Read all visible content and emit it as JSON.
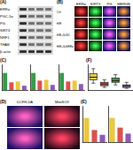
{
  "blot": {
    "label": "(A)",
    "rows": [
      "ERRα",
      "PGC-1α",
      "PG",
      "SIRT3",
      "NRF1",
      "TFAM",
      "β-actin"
    ]
  },
  "staining": {
    "label": "(B)",
    "columns": [
      "ERRα",
      "SIRT3",
      "PG",
      "MERGE"
    ],
    "rows": [
      "Ctrl",
      "H/R",
      "H/R+Si-NC",
      "H/R+Si-ERRα"
    ]
  },
  "imaging": {
    "label": "(D)",
    "columns": [
      "DCFH-DA",
      "MitoSOX"
    ]
  },
  "chart_data": [
    {
      "type": "bar",
      "title": "(C)",
      "categories": [
        null,
        null,
        null,
        null
      ],
      "values": [
        1.0,
        0.45,
        0.5,
        0.25
      ],
      "colors": [
        "#3a9a4a",
        "#d9534f",
        "#e8c840",
        "#8e5ab5"
      ],
      "ylim": [
        0,
        1.5
      ],
      "grid": false,
      "tick_labels": false
    },
    {
      "type": "bar",
      "categories": [
        null,
        null,
        null,
        null
      ],
      "values": [
        1.0,
        0.55,
        0.6,
        0.3
      ],
      "colors": [
        "#3a9a4a",
        "#d9534f",
        "#e8c840",
        "#8e5ab5"
      ],
      "ylim": [
        0,
        1.5
      ],
      "grid": false,
      "tick_labels": false
    },
    {
      "type": "bar",
      "categories": [
        null,
        null,
        null,
        null
      ],
      "values": [
        1.0,
        0.5,
        0.55,
        0.35
      ],
      "colors": [
        "#3a9a4a",
        "#d9534f",
        "#e8c840",
        "#8e5ab5"
      ],
      "ylim": [
        0,
        1.5
      ],
      "grid": false,
      "tick_labels": false
    },
    {
      "type": "box",
      "title": "(F)",
      "categories": [
        null,
        null,
        null,
        null
      ],
      "boxes": [
        {
          "min": 8,
          "q1": 12,
          "median": 15,
          "q3": 19,
          "max": 25
        },
        {
          "min": 3,
          "q1": 5,
          "median": 7,
          "q3": 9,
          "max": 12
        },
        {
          "min": 6,
          "q1": 9,
          "median": 11,
          "q3": 14,
          "max": 18
        },
        {
          "min": 2,
          "q1": 3,
          "median": 5,
          "q3": 6,
          "max": 9
        }
      ],
      "colors": [
        "#e8c840",
        "#d9534f",
        "#3a9a4a",
        "#8e5ab5"
      ],
      "ylim": [
        0,
        30
      ],
      "grid": false,
      "tick_labels": false
    },
    {
      "type": "bar",
      "title": "(E)",
      "categories": [
        null,
        null,
        null
      ],
      "values": [
        1.0,
        0.5,
        0.3
      ],
      "colors": [
        "#e8c840",
        "#d9534f",
        "#8e5ab5"
      ],
      "ylim": [
        0,
        1.5
      ],
      "grid": false,
      "tick_labels": false
    },
    {
      "type": "bar",
      "categories": [
        null,
        null,
        null
      ],
      "values": [
        1.0,
        0.6,
        0.35
      ],
      "colors": [
        "#e8c840",
        "#d9534f",
        "#8e5ab5"
      ],
      "ylim": [
        0,
        1.5
      ],
      "grid": false,
      "tick_labels": false
    }
  ]
}
